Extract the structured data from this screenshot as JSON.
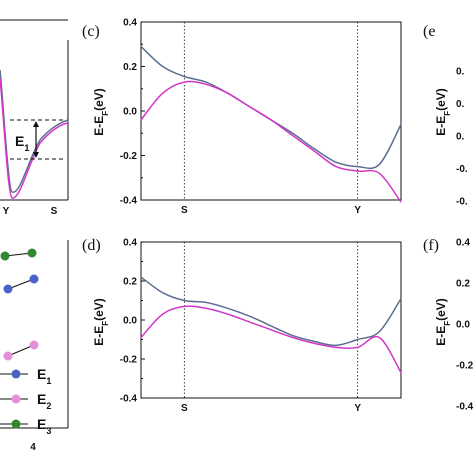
{
  "chart_data": [
    {
      "id": "a-partial",
      "type": "line",
      "title": "",
      "x_ticks": [
        "Y",
        "S"
      ],
      "annotation": "E",
      "annotation_sub": "1"
    },
    {
      "id": "b-partial",
      "type": "line",
      "title": "",
      "x_ticks": [
        "4"
      ],
      "legend": [
        {
          "label": "E",
          "sub": "1",
          "color": "#4a63c9"
        },
        {
          "label": "E",
          "sub": "2",
          "color": "#e58fd6"
        },
        {
          "label": "E",
          "sub": "3",
          "color": "#2f8a2f"
        }
      ]
    },
    {
      "id": "c",
      "panel_label": "(c)",
      "type": "line",
      "ylabel": "E-E",
      "ylabel_sub": "F",
      "ylabel_unit": "(eV)",
      "ylim": [
        -0.4,
        0.4
      ],
      "y_ticks": [
        "0.4",
        "0.2",
        "0.0",
        "-0.2",
        "-0.4"
      ],
      "x_ticks": [
        "S",
        "Y"
      ],
      "series": [
        {
          "color": "#5b6f8f",
          "x": [
            0,
            0.1,
            0.2,
            0.3,
            0.4,
            0.5,
            0.6,
            0.7,
            0.8,
            0.9,
            1.0,
            1.1,
            1.2
          ],
          "y": [
            0.29,
            0.2,
            0.155,
            0.13,
            0.08,
            0.02,
            -0.04,
            -0.1,
            -0.17,
            -0.23,
            -0.25,
            -0.24,
            -0.06
          ]
        },
        {
          "color": "#d236c8",
          "x": [
            0,
            0.1,
            0.2,
            0.3,
            0.4,
            0.5,
            0.6,
            0.7,
            0.8,
            0.9,
            1.0,
            1.1,
            1.2
          ],
          "y": [
            -0.04,
            0.08,
            0.13,
            0.12,
            0.08,
            0.02,
            -0.04,
            -0.11,
            -0.18,
            -0.25,
            -0.27,
            -0.28,
            -0.41
          ]
        }
      ]
    },
    {
      "id": "d",
      "panel_label": "(d)",
      "type": "line",
      "ylabel": "E-E",
      "ylabel_sub": "F",
      "ylabel_unit": "(eV)",
      "ylim": [
        -0.4,
        0.4
      ],
      "y_ticks": [
        "0.4",
        "0.2",
        "0.0",
        "-0.2",
        "-0.4"
      ],
      "x_ticks": [
        "S",
        "Y"
      ],
      "series": [
        {
          "color": "#5b6f8f",
          "x": [
            0,
            0.1,
            0.2,
            0.3,
            0.4,
            0.5,
            0.6,
            0.7,
            0.8,
            0.9,
            1.0,
            1.1,
            1.2
          ],
          "y": [
            0.22,
            0.14,
            0.1,
            0.09,
            0.06,
            0.02,
            -0.03,
            -0.08,
            -0.11,
            -0.13,
            -0.1,
            -0.06,
            0.11
          ]
        },
        {
          "color": "#d236c8",
          "x": [
            0,
            0.1,
            0.2,
            0.3,
            0.4,
            0.5,
            0.6,
            0.7,
            0.8,
            0.9,
            1.0,
            1.1,
            1.2
          ],
          "y": [
            -0.09,
            0.03,
            0.07,
            0.06,
            0.03,
            -0.01,
            -0.05,
            -0.09,
            -0.12,
            -0.14,
            -0.14,
            -0.09,
            -0.27
          ]
        }
      ]
    },
    {
      "id": "e-partial",
      "panel_label": "(e",
      "type": "line",
      "ylabel": "E-E",
      "ylabel_sub": "F",
      "ylabel_unit": "(eV)",
      "y_ticks": [
        "0.",
        "0.",
        "0.",
        "-0.",
        "-0."
      ]
    },
    {
      "id": "f-partial",
      "panel_label": "(f)",
      "type": "line",
      "ylabel": "E-E",
      "ylabel_sub": "F",
      "ylabel_unit": "(eV)",
      "y_ticks": [
        "0.4",
        "0.2",
        "0.0",
        "-0.2",
        "-0.4"
      ]
    }
  ]
}
